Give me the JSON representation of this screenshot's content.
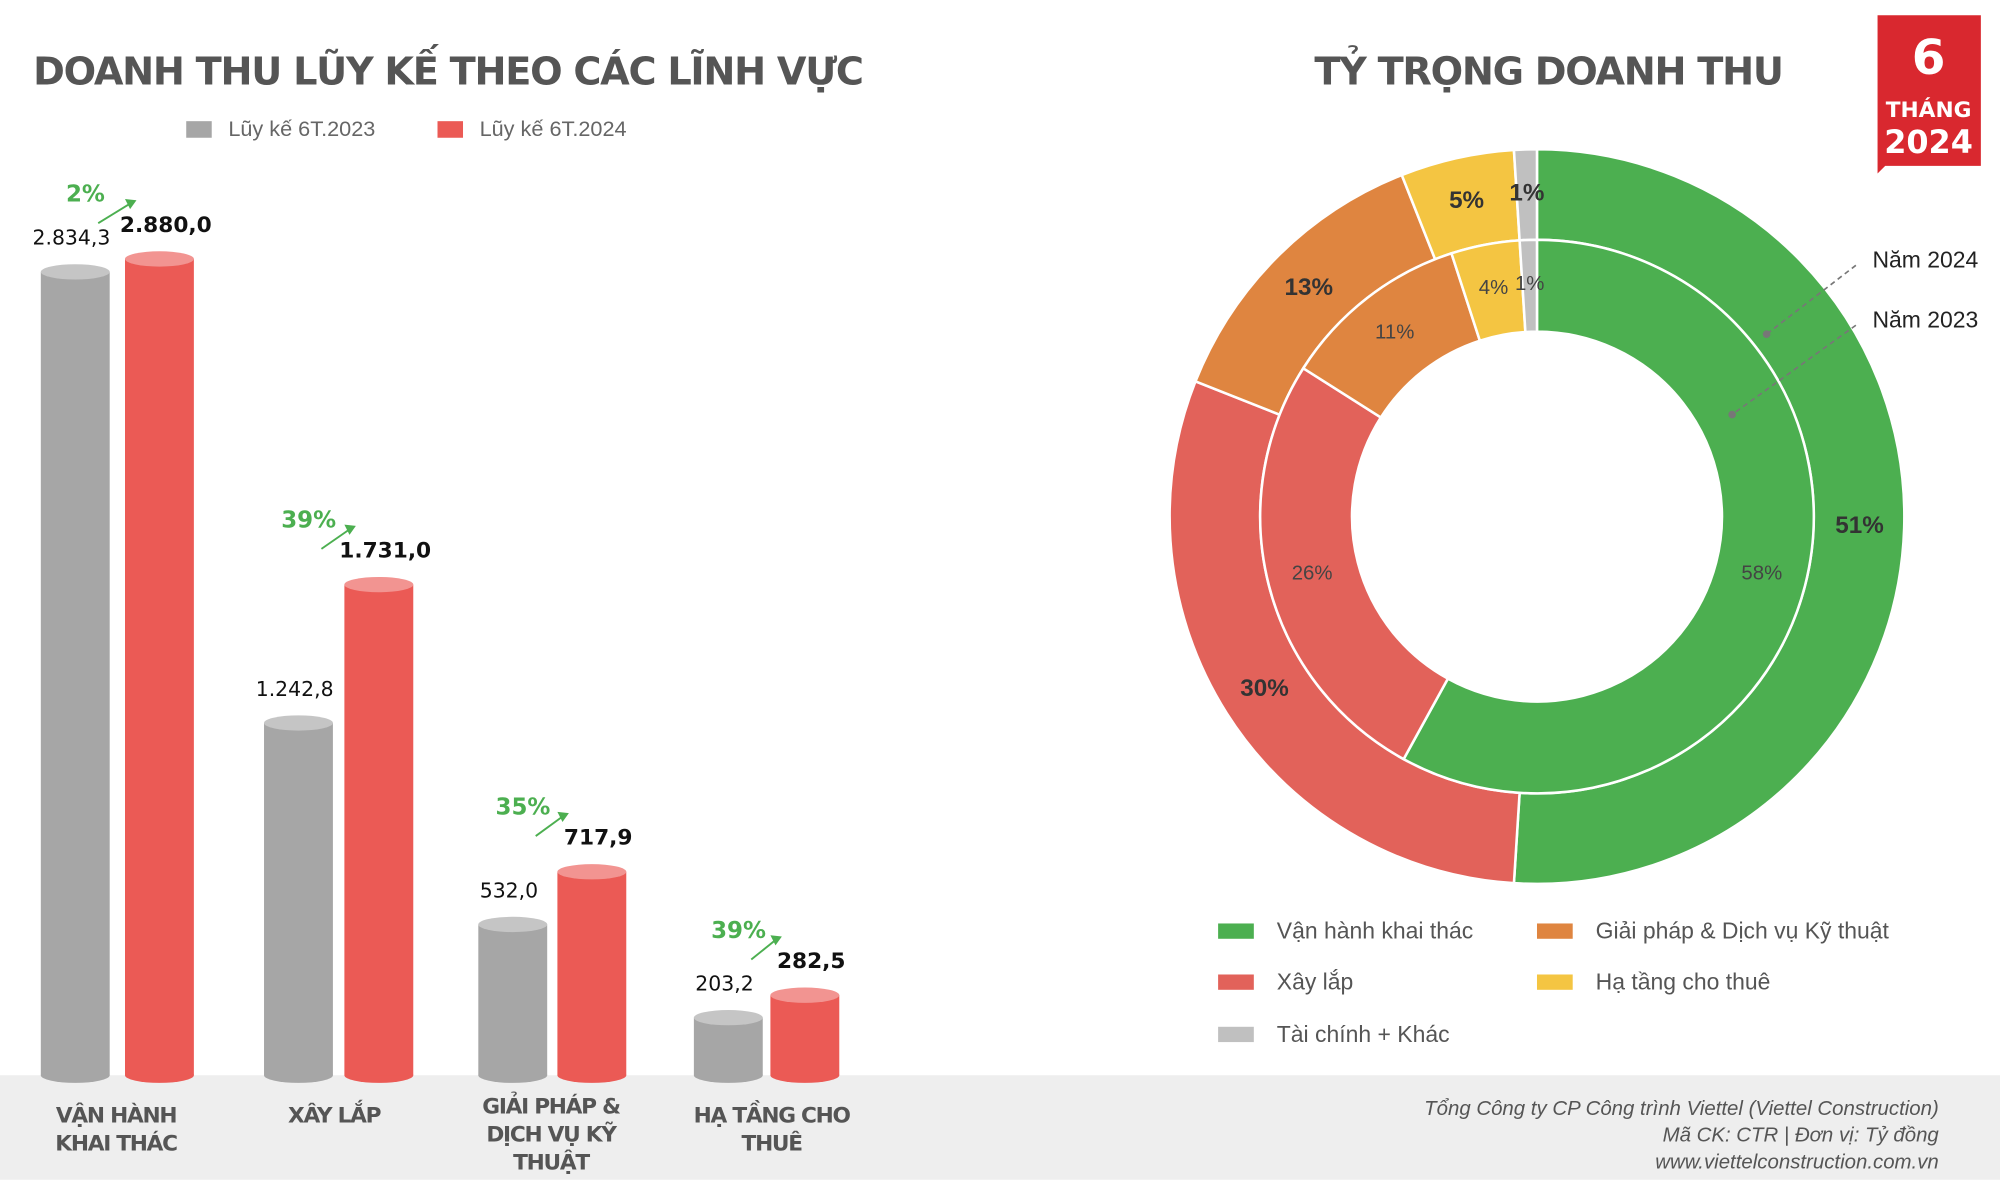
{
  "badge": {
    "number": "6",
    "line1": "THÁNG",
    "line2": "2024"
  },
  "footer": [
    "Tổng Công ty CP Công trình Viettel (Viettel Construction)",
    "Mã CK: CTR  |  Đơn vị: Tỷ đồng",
    "www.viettelconstruction.com.vn"
  ],
  "chart_data": [
    {
      "type": "cylinder-bar",
      "title": "DOANH THU LŨY KẾ THEO CÁC LĨNH VỰC",
      "categories": [
        "VẬN HÀNH KHAI THÁC",
        "XÂY LẮP",
        "GIẢI PHÁP & DỊCH VỤ KỸ THUẬT",
        "HẠ TẦNG CHO THUÊ"
      ],
      "series": [
        {
          "name": "Lũy kế 6T.2023",
          "color": "#a6a6a6",
          "values": [
            2834.3,
            1242.8,
            532.0,
            203.2
          ],
          "value_labels": [
            "2.834,3",
            "1.242,8",
            "532,0",
            "203,2"
          ]
        },
        {
          "name": "Lũy kế 6T.2024",
          "color": "#eb5a55",
          "values": [
            2880.0,
            1731.0,
            717.9,
            282.5
          ],
          "value_labels": [
            "2.880,0",
            "1.731,0",
            "717,9",
            "282,5"
          ]
        }
      ],
      "growth": [
        2,
        39,
        35,
        39
      ],
      "growth_labels": [
        "2%",
        "39%",
        "35%",
        "39%"
      ],
      "growth_color": "#4caf50"
    },
    {
      "type": "donut",
      "title": "TỶ TRỌNG DOANH THU",
      "categories": [
        "Vận hành khai thác",
        "Xây lắp",
        "Giải pháp & Dịch vụ Kỹ thuật",
        "Hạ tầng cho thuê",
        "Tài chính + Khác"
      ],
      "colors": [
        "#4caf50",
        "#e2625a",
        "#df8540",
        "#f4c542",
        "#c0c0c0"
      ],
      "series": [
        {
          "name": "Năm 2024",
          "values": [
            51,
            30,
            13,
            5,
            1
          ],
          "value_labels": [
            "51%",
            "30%",
            "13%",
            "5%",
            "1%"
          ]
        },
        {
          "name": "Năm 2023",
          "values": [
            58,
            26,
            11,
            4,
            1
          ],
          "value_labels": [
            "58%",
            "26%",
            "11%",
            "4%",
            "1%"
          ]
        }
      ]
    }
  ]
}
